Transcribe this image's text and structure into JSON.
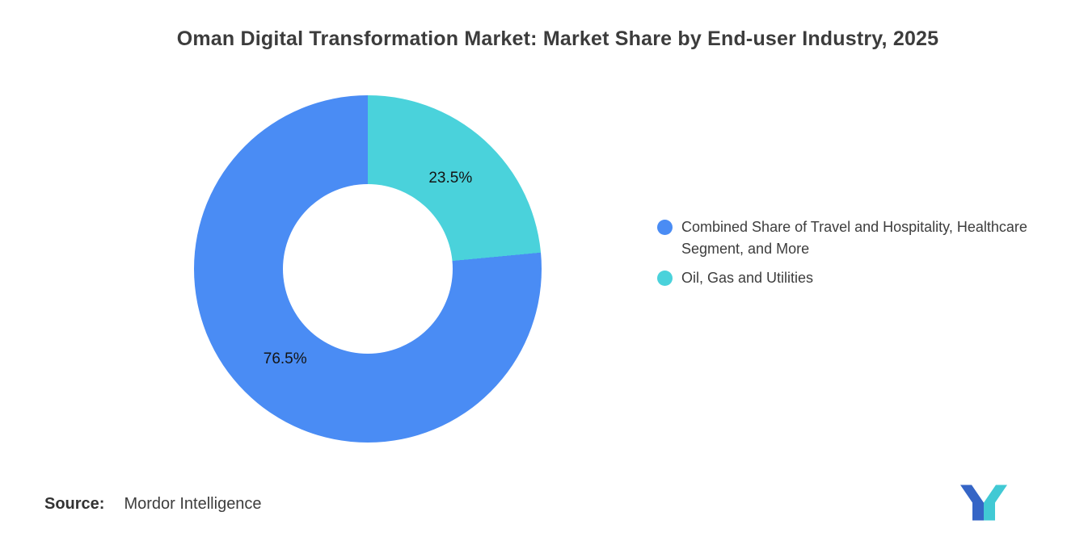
{
  "title": "Oman Digital Transformation Market: Market Share by End-user Industry, 2025",
  "chart_data": {
    "type": "pie",
    "style": "donut",
    "title": "Oman Digital Transformation Market: Market Share by End-user Industry, 2025",
    "unit": "%",
    "direction": "clockwise",
    "start_angle_deg": 84.6,
    "inner_radius_ratio": 0.49,
    "legend_position": "right",
    "slices": [
      {
        "label": "Combined Share of Travel and Hospitality, Healthcare Segment, and More",
        "value": 76.5,
        "data_label": "76.5%",
        "color": "#4A8CF4"
      },
      {
        "label": "Oil, Gas and Utilities",
        "value": 23.5,
        "data_label": "23.5%",
        "color": "#4AD2DB"
      }
    ]
  },
  "source": {
    "label": "Source:",
    "value": "Mordor Intelligence"
  },
  "logo": {
    "name": "mordor-intelligence-logo",
    "blue": "#3565C6",
    "teal": "#41C9D4"
  }
}
